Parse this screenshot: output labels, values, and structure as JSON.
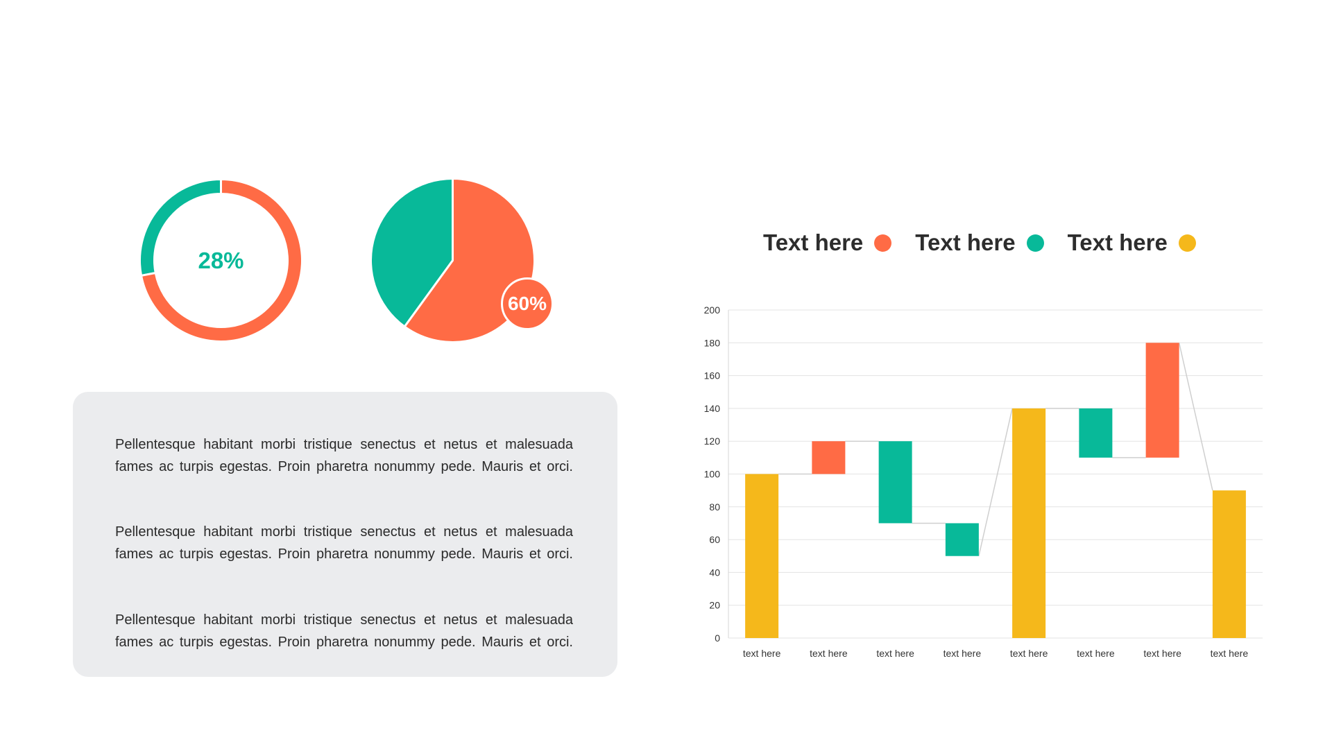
{
  "colors": {
    "orange": "#ff6b45",
    "teal": "#08b999",
    "yellow": "#f5b81b",
    "panel": "#ebecee"
  },
  "donut": {
    "percent_label": "28%"
  },
  "pie": {
    "percent_label": "60%"
  },
  "paragraphs": [
    "Pellentesque habitant morbi tristique senectus et netus et malesuada fames ac turpis egestas. Proin pharetra nonummy  pede. Mauris et orci.",
    "Pellentesque habitant morbi tristique senectus et netus et malesuada fames ac turpis egestas. Proin pharetra nonummy  pede. Mauris et orci.",
    "Pellentesque habitant morbi tristique senectus et netus et malesuada fames ac turpis egestas. Proin pharetra nonummy  pede. Mauris et orci."
  ],
  "legend": [
    {
      "label": "Text here",
      "color": "#ff6b45"
    },
    {
      "label": "Text here",
      "color": "#08b999"
    },
    {
      "label": "Text here",
      "color": "#f5b81b"
    }
  ],
  "chart_data": [
    {
      "type": "pie",
      "variant": "donut",
      "slices": [
        {
          "label": "28%",
          "value": 28,
          "color": "#08b999"
        },
        {
          "value": 72,
          "color": "#ff6b45"
        }
      ]
    },
    {
      "type": "pie",
      "slices": [
        {
          "label": "60%",
          "value": 60,
          "color": "#ff6b45"
        },
        {
          "value": 40,
          "color": "#08b999"
        }
      ]
    },
    {
      "type": "bar",
      "variant": "waterfall",
      "categories": [
        "text here",
        "text here",
        "text here",
        "text here",
        "text here",
        "text here",
        "text here",
        "text here"
      ],
      "bars": [
        {
          "from": 0,
          "to": 100,
          "color": "#f5b81b"
        },
        {
          "from": 100,
          "to": 120,
          "color": "#ff6b45"
        },
        {
          "from": 120,
          "to": 70,
          "color": "#08b999"
        },
        {
          "from": 70,
          "to": 50,
          "color": "#08b999"
        },
        {
          "from": 0,
          "to": 140,
          "color": "#f5b81b"
        },
        {
          "from": 140,
          "to": 110,
          "color": "#08b999"
        },
        {
          "from": 110,
          "to": 180,
          "color": "#ff6b45"
        },
        {
          "from": 0,
          "to": 90,
          "color": "#f5b81b"
        }
      ],
      "ylim": [
        0,
        200
      ],
      "yticks": [
        0,
        20,
        40,
        60,
        80,
        100,
        120,
        140,
        160,
        180,
        200
      ],
      "grid": true,
      "legend_position": "top"
    }
  ]
}
